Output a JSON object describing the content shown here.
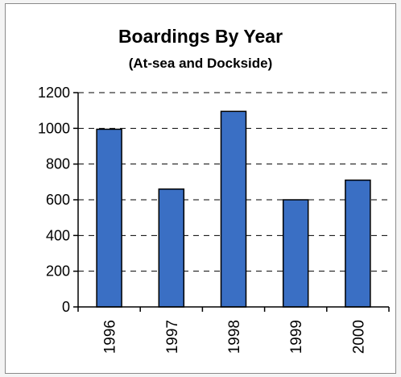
{
  "chart_data": {
    "type": "bar",
    "title": "Boardings By Year",
    "subtitle": "(At-sea and Dockside)",
    "categories": [
      "1996",
      "1997",
      "1998",
      "1999",
      "2000"
    ],
    "values": [
      995,
      660,
      1095,
      600,
      710
    ],
    "ylim": [
      0,
      1200
    ],
    "yticks": [
      0,
      200,
      400,
      600,
      800,
      1000,
      1200
    ],
    "grid": "dashed horizontal",
    "bar_color": "#3a6fc4",
    "bar_edge_color": "#000000"
  }
}
